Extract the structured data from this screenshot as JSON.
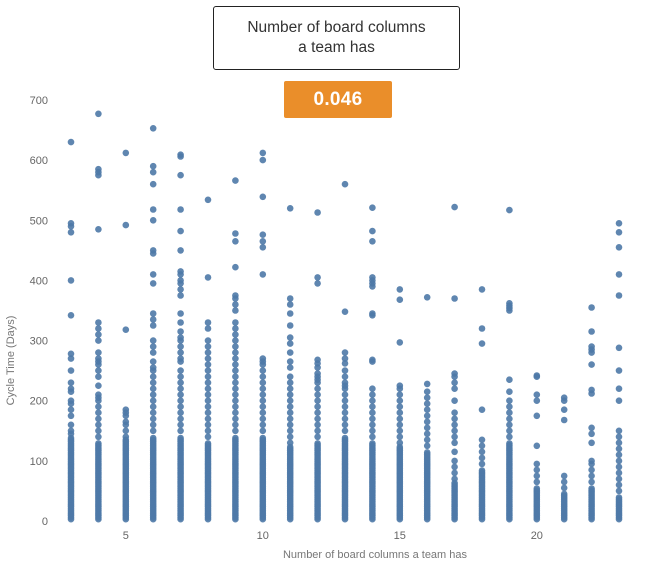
{
  "card": {
    "title": "Number of board columns\na team has",
    "correlation": "0.046",
    "badge_color": "#EA8E2A"
  },
  "chart_data": {
    "type": "scatter",
    "xlabel": "Number of board columns a team has",
    "ylabel": "Cycle Time (Days)",
    "xlim": [
      2.6,
      23.4
    ],
    "ylim": [
      0,
      700
    ],
    "xticks": [
      5,
      10,
      15,
      20
    ],
    "yticks": [
      0,
      100,
      200,
      300,
      400,
      500,
      600,
      700
    ],
    "grid": false,
    "point_color": "#4E79A7",
    "columns": [
      {
        "x": 3,
        "dense_max": 140,
        "outliers": [
          630,
          495,
          490,
          480,
          400,
          342,
          278,
          270,
          250,
          230,
          220,
          215,
          200,
          195,
          185,
          175,
          160,
          150,
          145
        ]
      },
      {
        "x": 4,
        "dense_max": 130,
        "outliers": [
          677,
          585,
          580,
          575,
          485,
          330,
          320,
          310,
          300,
          280,
          270,
          265,
          260,
          250,
          240,
          225,
          210,
          205,
          200,
          190,
          180,
          170,
          160,
          150,
          140
        ]
      },
      {
        "x": 5,
        "dense_max": 135,
        "outliers": [
          612,
          492,
          318,
          185,
          180,
          175,
          165,
          160,
          150,
          140
        ]
      },
      {
        "x": 6,
        "dense_max": 140,
        "outliers": [
          653,
          590,
          580,
          560,
          518,
          500,
          450,
          445,
          410,
          395,
          345,
          335,
          325,
          300,
          290,
          280,
          265,
          255,
          250,
          240,
          230,
          220,
          210,
          200,
          190,
          180,
          170,
          160,
          150
        ]
      },
      {
        "x": 7,
        "dense_max": 140,
        "outliers": [
          609,
          606,
          575,
          518,
          482,
          450,
          415,
          410,
          400,
          395,
          385,
          375,
          345,
          330,
          315,
          305,
          300,
          290,
          280,
          270,
          265,
          250,
          240,
          230,
          220,
          210,
          200,
          190,
          180,
          170,
          160,
          150
        ]
      },
      {
        "x": 8,
        "dense_max": 130,
        "outliers": [
          534,
          405,
          330,
          320,
          300,
          290,
          280,
          270,
          260,
          250,
          240,
          230,
          220,
          210,
          200,
          190,
          180,
          170,
          160,
          150,
          140
        ]
      },
      {
        "x": 9,
        "dense_max": 140,
        "outliers": [
          566,
          478,
          465,
          422,
          375,
          370,
          360,
          350,
          330,
          320,
          310,
          300,
          290,
          280,
          270,
          260,
          250,
          240,
          230,
          220,
          210,
          200,
          190,
          180,
          170,
          160,
          150
        ]
      },
      {
        "x": 10,
        "dense_max": 140,
        "outliers": [
          612,
          600,
          539,
          476,
          465,
          455,
          410,
          270,
          265,
          260,
          250,
          240,
          230,
          220,
          210,
          200,
          190,
          180,
          170,
          160,
          150
        ]
      },
      {
        "x": 11,
        "dense_max": 125,
        "outliers": [
          520,
          370,
          360,
          345,
          325,
          305,
          295,
          280,
          265,
          255,
          240,
          230,
          220,
          210,
          200,
          190,
          180,
          170,
          160,
          150,
          140,
          130
        ]
      },
      {
        "x": 12,
        "dense_max": 130,
        "outliers": [
          513,
          405,
          395,
          268,
          262,
          255,
          245,
          240,
          235,
          230,
          220,
          210,
          200,
          190,
          180,
          170,
          160,
          150,
          140
        ]
      },
      {
        "x": 13,
        "dense_max": 140,
        "outliers": [
          560,
          348,
          280,
          270,
          262,
          250,
          240,
          230,
          225,
          220,
          210,
          200,
          190,
          180,
          170,
          160,
          150
        ]
      },
      {
        "x": 14,
        "dense_max": 130,
        "outliers": [
          521,
          482,
          465,
          405,
          400,
          395,
          390,
          345,
          342,
          268,
          265,
          220,
          210,
          200,
          190,
          180,
          170,
          160,
          150,
          140
        ]
      },
      {
        "x": 15,
        "dense_max": 125,
        "outliers": [
          385,
          368,
          297,
          225,
          220,
          210,
          200,
          190,
          180,
          170,
          160,
          150,
          140,
          130
        ]
      },
      {
        "x": 16,
        "dense_max": 115,
        "outliers": [
          372,
          228,
          215,
          205,
          195,
          185,
          175,
          165,
          155,
          145,
          135,
          125
        ]
      },
      {
        "x": 17,
        "dense_max": 65,
        "outliers": [
          522,
          370,
          245,
          240,
          230,
          220,
          200,
          180,
          170,
          160,
          150,
          140,
          130,
          115,
          100,
          90,
          80,
          70
        ]
      },
      {
        "x": 18,
        "dense_max": 85,
        "outliers": [
          385,
          320,
          295,
          185,
          135,
          125,
          115,
          105,
          95
        ]
      },
      {
        "x": 19,
        "dense_max": 130,
        "outliers": [
          517,
          362,
          358,
          354,
          350,
          235,
          215,
          200,
          190,
          180,
          170,
          160,
          150,
          140
        ]
      },
      {
        "x": 20,
        "dense_max": 55,
        "outliers": [
          242,
          240,
          210,
          200,
          175,
          125,
          95,
          85,
          75,
          65
        ]
      },
      {
        "x": 21,
        "dense_max": 45,
        "outliers": [
          205,
          200,
          185,
          168,
          75,
          65,
          55
        ]
      },
      {
        "x": 22,
        "dense_max": 55,
        "outliers": [
          355,
          315,
          290,
          285,
          280,
          260,
          218,
          212,
          155,
          145,
          130,
          100,
          95,
          85,
          75,
          65
        ]
      },
      {
        "x": 23,
        "dense_max": 40,
        "outliers": [
          495,
          480,
          455,
          410,
          375,
          288,
          250,
          220,
          200,
          150,
          140,
          130,
          120,
          110,
          100,
          90,
          80,
          70,
          60,
          50
        ]
      }
    ]
  }
}
